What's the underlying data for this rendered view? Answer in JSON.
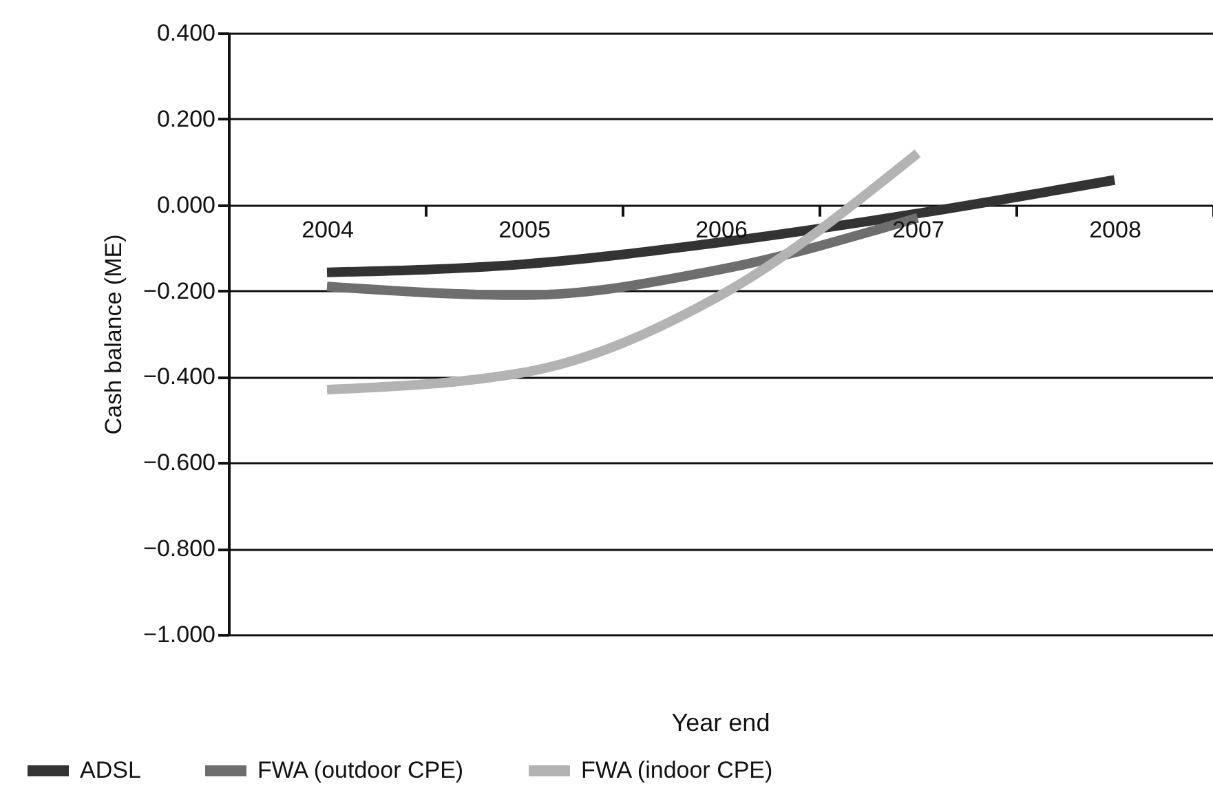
{
  "chart_data": {
    "type": "line",
    "xlabel": "Year end",
    "ylabel": "Cash balance (ME)",
    "categories": [
      "2004",
      "2005",
      "2006",
      "2007",
      "2008"
    ],
    "series": [
      {
        "name": "ADSL",
        "color": "#333333",
        "values": [
          -0.157,
          -0.138,
          -0.087,
          -0.02,
          0.058
        ]
      },
      {
        "name": "FWA (outdoor CPE)",
        "color": "#6e6e6e",
        "values": [
          -0.19,
          -0.21,
          -0.15,
          -0.03,
          null
        ]
      },
      {
        "name": "FWA (indoor CPE)",
        "color": "#b3b3b3",
        "values": [
          -0.43,
          -0.39,
          -0.21,
          0.12,
          null
        ]
      }
    ],
    "ylim": [
      -1.0,
      0.4
    ],
    "yticks": [
      {
        "value": 0.4,
        "label": "0.400"
      },
      {
        "value": 0.2,
        "label": "0.200"
      },
      {
        "value": 0,
        "label": "0.000"
      },
      {
        "value": -0.2,
        "label": "−0.200"
      },
      {
        "value": -0.4,
        "label": "−0.400"
      },
      {
        "value": -0.6,
        "label": "−0.600"
      },
      {
        "value": -0.8,
        "label": "−0.800"
      },
      {
        "value": -1.0,
        "label": "−1.000"
      }
    ],
    "grid": "y",
    "legend": "bottom",
    "marker": "none",
    "line_style": "solid"
  }
}
